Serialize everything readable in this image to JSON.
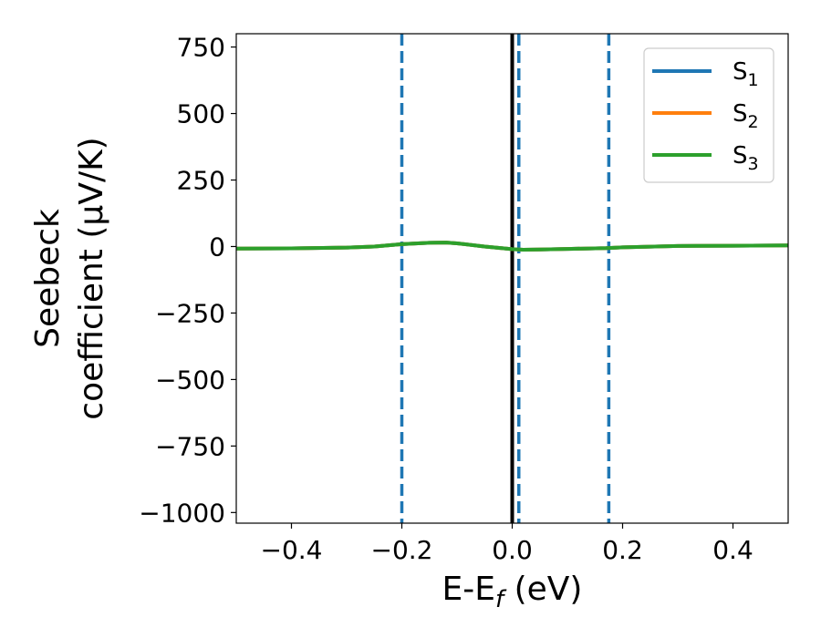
{
  "chart_data": {
    "type": "line",
    "xlabel": "E-E_f (eV)",
    "xlabel_parts": {
      "main": "E-E",
      "sub": "f",
      "unit": " (eV)"
    },
    "ylabel_line1": "Seebeck",
    "ylabel_line2": "coefficient  (μV/K)",
    "xlim": [
      -0.5,
      0.5
    ],
    "ylim": [
      -1040,
      800
    ],
    "x_ticks": [
      -0.4,
      -0.2,
      0.0,
      0.2,
      0.4
    ],
    "x_tick_labels": [
      "−0.4",
      "−0.2",
      "0.0",
      "0.2",
      "0.4"
    ],
    "y_ticks": [
      750,
      500,
      250,
      0,
      -250,
      -500,
      -750,
      -1000
    ],
    "y_tick_labels": [
      "750",
      "500",
      "250",
      "0",
      "−250",
      "−500",
      "−750",
      "−1000"
    ],
    "grid": false,
    "legend_position": "top-right",
    "series": [
      {
        "name": "S1",
        "name_parts": {
          "main": "S",
          "sub": "1"
        },
        "color": "#1f77b4",
        "x": [
          -0.5,
          -0.4,
          -0.3,
          -0.25,
          -0.2,
          -0.15,
          -0.12,
          -0.1,
          -0.05,
          0.0,
          0.02,
          0.05,
          0.1,
          0.17,
          0.2,
          0.3,
          0.4,
          0.5
        ],
        "y": [
          -8,
          -7,
          -4,
          0,
          9,
          14,
          15,
          12,
          0,
          -10,
          -12,
          -11,
          -9,
          -6,
          -3,
          2,
          3,
          4
        ]
      },
      {
        "name": "S2",
        "name_parts": {
          "main": "S",
          "sub": "2"
        },
        "color": "#ff7f0e",
        "x": [
          -0.5,
          -0.4,
          -0.3,
          -0.25,
          -0.2,
          -0.15,
          -0.12,
          -0.1,
          -0.05,
          0.0,
          0.02,
          0.05,
          0.1,
          0.17,
          0.2,
          0.3,
          0.4,
          0.5
        ],
        "y": [
          -8,
          -7,
          -4,
          0,
          9,
          14,
          15,
          12,
          0,
          -10,
          -12,
          -11,
          -9,
          -6,
          -3,
          2,
          3,
          4
        ]
      },
      {
        "name": "S3",
        "name_parts": {
          "main": "S",
          "sub": "3"
        },
        "color": "#2ca02c",
        "x": [
          -0.5,
          -0.4,
          -0.3,
          -0.25,
          -0.2,
          -0.15,
          -0.12,
          -0.1,
          -0.05,
          0.0,
          0.02,
          0.05,
          0.1,
          0.17,
          0.2,
          0.3,
          0.4,
          0.5
        ],
        "y": [
          -8,
          -7,
          -4,
          0,
          9,
          14,
          15,
          12,
          0,
          -10,
          -12,
          -11,
          -9,
          -6,
          -3,
          2,
          3,
          4
        ]
      }
    ],
    "vertical_lines": [
      {
        "x": 0.0,
        "style": "solid",
        "color": "#000000"
      },
      {
        "x": -0.2,
        "style": "dashed",
        "color": "#1f77b4"
      },
      {
        "x": 0.012,
        "style": "dashed",
        "color": "#1f77b4"
      },
      {
        "x": 0.175,
        "style": "dashed",
        "color": "#1f77b4"
      }
    ]
  }
}
